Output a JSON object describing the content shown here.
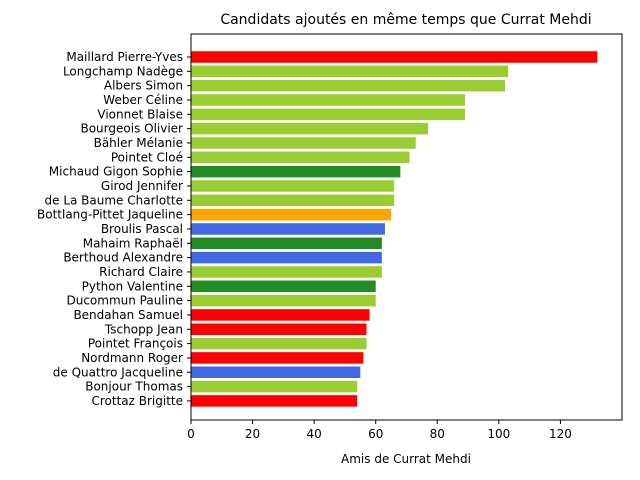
{
  "chart_data": {
    "type": "bar",
    "orientation": "horizontal",
    "title": "Candidats ajoutés en même temps que Currat Mehdi",
    "xlabel": "Amis de Currat Mehdi",
    "ylabel": "",
    "xlim": [
      0,
      140
    ],
    "xticks": [
      0,
      20,
      40,
      60,
      80,
      100,
      120
    ],
    "grid": false,
    "categories": [
      "Maillard Pierre-Yves",
      "Longchamp Nadège",
      "Albers Simon",
      "Weber Céline",
      "Vionnet Blaise",
      "Bourgeois Olivier",
      "Bähler Mélanie",
      "Pointet Cloé",
      "Michaud Gigon Sophie",
      "Girod Jennifer",
      "de La Baume Charlotte",
      "Bottlang-Pittet Jaqueline",
      "Broulis Pascal",
      "Mahaim Raphaël",
      "Berthoud Alexandre",
      "Richard Claire",
      "Python Valentine",
      "Ducommun Pauline",
      "Bendahan Samuel",
      "Tschopp Jean",
      "Pointet François",
      "Nordmann Roger",
      "de Quattro Jacqueline",
      "Bonjour Thomas",
      "Crottaz Brigitte"
    ],
    "values": [
      132,
      103,
      102,
      89,
      89,
      77,
      73,
      71,
      68,
      66,
      66,
      65,
      63,
      62,
      62,
      62,
      60,
      60,
      58,
      57,
      57,
      56,
      55,
      54,
      54
    ],
    "colors": [
      "#ff0000",
      "#9acd32",
      "#9acd32",
      "#9acd32",
      "#9acd32",
      "#9acd32",
      "#9acd32",
      "#9acd32",
      "#228b22",
      "#9acd32",
      "#9acd32",
      "#ffa500",
      "#4169e1",
      "#228b22",
      "#4169e1",
      "#9acd32",
      "#228b22",
      "#9acd32",
      "#ff0000",
      "#ff0000",
      "#9acd32",
      "#ff0000",
      "#4169e1",
      "#9acd32",
      "#ff0000"
    ]
  }
}
